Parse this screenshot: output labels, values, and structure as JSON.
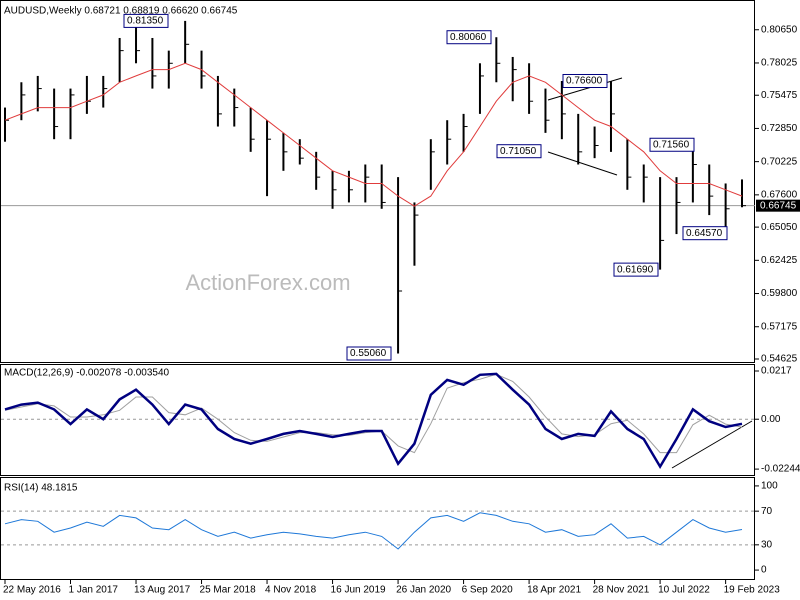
{
  "chart_data": [
    {
      "type": "ohlc",
      "title": "AUDUSD,Weekly  0.68721 0.68819 0.66620 0.66745",
      "watermark": "ActionForex.com",
      "categories": [
        "22 May 2016",
        null,
        null,
        null,
        "1 Jan 2017",
        null,
        null,
        null,
        "13 Aug 2017",
        null,
        null,
        null,
        "25 Mar 2018",
        null,
        null,
        null,
        "4 Nov 2018",
        null,
        null,
        null,
        "16 Jun 2019",
        null,
        null,
        null,
        "26 Jan 2020",
        null,
        null,
        null,
        "6 Sep 2020",
        null,
        null,
        null,
        "18 Apr 2021",
        null,
        null,
        null,
        "28 Nov 2021",
        null,
        null,
        null,
        "10 Jul 2022",
        null,
        null,
        null,
        "19 Feb 2023",
        null
      ],
      "high": [
        0.745,
        0.765,
        0.77,
        0.76,
        0.76,
        0.77,
        0.77,
        0.8,
        0.8135,
        0.8,
        0.79,
        0.8135,
        0.79,
        0.77,
        0.76,
        0.745,
        0.735,
        0.725,
        0.72,
        0.71,
        0.695,
        0.695,
        0.7,
        0.7,
        0.69,
        0.67,
        0.72,
        0.735,
        0.74,
        0.78,
        0.8006,
        0.785,
        0.78,
        0.76,
        0.766,
        0.74,
        0.73,
        0.766,
        0.72,
        0.7,
        0.69,
        0.69,
        0.7156,
        0.7,
        0.685,
        0.68819
      ],
      "low": [
        0.718,
        0.735,
        0.742,
        0.72,
        0.72,
        0.74,
        0.745,
        0.765,
        0.78,
        0.76,
        0.76,
        0.78,
        0.76,
        0.73,
        0.73,
        0.71,
        0.675,
        0.695,
        0.7,
        0.68,
        0.665,
        0.67,
        0.67,
        0.665,
        0.5506,
        0.62,
        0.68,
        0.7,
        0.71,
        0.74,
        0.765,
        0.75,
        0.74,
        0.725,
        0.72,
        0.7,
        0.705,
        0.71,
        0.68,
        0.67,
        0.6169,
        0.645,
        0.67,
        0.66,
        0.6457,
        0.6662
      ],
      "close": [
        0.735,
        0.755,
        0.76,
        0.73,
        0.755,
        0.75,
        0.76,
        0.79,
        0.79,
        0.77,
        0.78,
        0.795,
        0.77,
        0.74,
        0.745,
        0.72,
        0.72,
        0.71,
        0.705,
        0.69,
        0.68,
        0.68,
        0.69,
        0.67,
        0.6,
        0.66,
        0.71,
        0.72,
        0.73,
        0.77,
        0.78,
        0.775,
        0.75,
        0.735,
        0.74,
        0.71,
        0.715,
        0.74,
        0.69,
        0.69,
        0.64,
        0.67,
        0.7,
        0.675,
        0.665,
        0.66745
      ],
      "color": "#000000",
      "ma_values": [
        0.735,
        0.74,
        0.745,
        0.745,
        0.745,
        0.75,
        0.755,
        0.765,
        0.77,
        0.775,
        0.775,
        0.78,
        0.775,
        0.765,
        0.755,
        0.745,
        0.735,
        0.725,
        0.715,
        0.705,
        0.695,
        0.69,
        0.685,
        0.685,
        0.675,
        0.667,
        0.675,
        0.695,
        0.71,
        0.73,
        0.75,
        0.765,
        0.77,
        0.765,
        0.755,
        0.745,
        0.735,
        0.73,
        0.72,
        0.71,
        0.695,
        0.685,
        0.685,
        0.685,
        0.68,
        0.675
      ],
      "ma_color": "#e03c3c",
      "last_price": 0.66745,
      "ylim": [
        0.54388,
        0.82923
      ],
      "yticks": [
        {
          "value": 0.8065,
          "label": "0.80650"
        },
        {
          "value": 0.78025,
          "label": "0.78025"
        },
        0.75475,
        {
          "value": 0.7285,
          "label": "0.72850"
        },
        0.70225,
        {
          "value": 0.676,
          "label": "0.67600"
        },
        {
          "value": 0.6505,
          "label": "0.65050"
        },
        0.62425,
        {
          "value": 0.598,
          "label": "0.59800"
        },
        0.57175,
        0.54625
      ],
      "annotations": [
        {
          "value": 0.8135,
          "label": "0.81350"
        },
        {
          "value": 0.8006,
          "label": "0.80060"
        },
        {
          "value": 0.766,
          "label": "0.76600"
        },
        {
          "value": 0.7105,
          "label": "0.71050"
        },
        {
          "value": 0.7156,
          "label": "0.71560"
        },
        {
          "value": 0.6457,
          "label": "0.64570"
        },
        {
          "value": 0.6169,
          "label": "0.61690"
        },
        {
          "value": 0.5506,
          "label": "0.55060"
        }
      ]
    },
    {
      "type": "macd",
      "title": "MACD(12,26,9) -0.002078 -0.003540",
      "series": [
        {
          "color": "#000080",
          "values": [
            0.0044,
            0.0066,
            0.0075,
            0.0044,
            -0.0022,
            0.0044,
            0,
            0.0089,
            0.0133,
            0.0066,
            -0.0022,
            0.0066,
            0.0044,
            -0.0044,
            -0.0089,
            -0.011,
            -0.0089,
            -0.0066,
            -0.0053,
            -0.0066,
            -0.008,
            -0.0066,
            -0.0053,
            -0.0053,
            -0.02,
            -0.011,
            0.011,
            0.0177,
            0.0155,
            0.02,
            0.0204,
            0.0133,
            0.0066,
            -0.0044,
            -0.0089,
            -0.0066,
            -0.0075,
            0.0035,
            -0.0044,
            -0.0089,
            -0.0213,
            -0.0089,
            0.0044,
            -0.0009,
            -0.0035,
            -0.002078
          ]
        },
        {
          "color": "#a0a0a0",
          "values": [
            0.004,
            0.0055,
            0.007,
            0.006,
            0.001,
            0.001,
            0.002,
            0.004,
            0.01,
            0.01,
            0.003,
            0.002,
            0.005,
            0,
            -0.006,
            -0.0095,
            -0.01,
            -0.008,
            -0.006,
            -0.006,
            -0.007,
            -0.0073,
            -0.006,
            -0.0053,
            -0.012,
            -0.015,
            -0.002,
            0.014,
            0.0165,
            0.018,
            0.0202,
            0.017,
            0.01,
            0.0011,
            -0.0066,
            -0.0078,
            -0.007,
            -0.002,
            -0.0005,
            -0.0066,
            -0.015,
            -0.015,
            -0.0025,
            0.0018,
            -0.0022,
            -0.00354
          ]
        }
      ],
      "ylim": [
        -0.0251,
        0.0244
      ],
      "yticks": [
        0.0217,
        {
          "value": 0,
          "label": "0.00"
        },
        -0.022445
      ]
    },
    {
      "type": "line",
      "title": "RSI(14) 48.1815",
      "color": "#1e78d8",
      "values": [
        55,
        60,
        58,
        45,
        50,
        57,
        52,
        65,
        62,
        50,
        48,
        60,
        48,
        40,
        45,
        38,
        42,
        45,
        43,
        40,
        38,
        42,
        45,
        40,
        25,
        45,
        62,
        65,
        58,
        68,
        65,
        58,
        55,
        45,
        48,
        40,
        42,
        55,
        38,
        40,
        30,
        45,
        60,
        50,
        45,
        48.1815
      ],
      "ylim": [
        -10.6,
        109.4
      ],
      "yticks": [
        100,
        70,
        30,
        0
      ]
    }
  ]
}
